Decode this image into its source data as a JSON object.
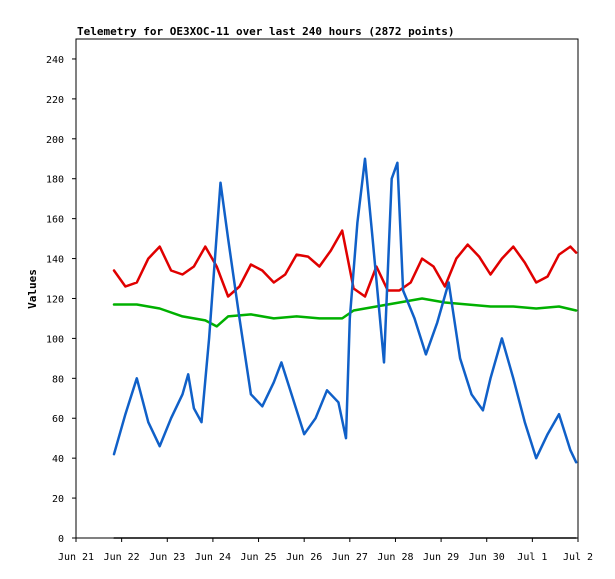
{
  "chart_data": {
    "type": "line",
    "title": "Telemetry for OE3XOC-11 over last 240 hours (2872 points)",
    "xlabel": "",
    "ylabel": "Values",
    "xlim": [
      "2024-06-21",
      "2024-07-02"
    ],
    "ylim": [
      0,
      250
    ],
    "x_ticks": [
      "Jun 21",
      "Jun 22",
      "Jun 23",
      "Jun 24",
      "Jun 25",
      "Jun 26",
      "Jun 27",
      "Jun 28",
      "Jun 29",
      "Jun 30",
      "Jul 1",
      "Jul 2"
    ],
    "y_ticks": [
      0,
      20,
      40,
      60,
      80,
      100,
      120,
      140,
      160,
      180,
      200,
      220,
      240
    ],
    "grid": false,
    "legend": "none",
    "series": [
      {
        "color": "#e00000",
        "points": [
          [
            "2024-06-21 20:00",
            134
          ],
          [
            "2024-06-22 02:00",
            126
          ],
          [
            "2024-06-22 08:00",
            128
          ],
          [
            "2024-06-22 14:00",
            140
          ],
          [
            "2024-06-22 20:00",
            146
          ],
          [
            "2024-06-23 02:00",
            134
          ],
          [
            "2024-06-23 08:00",
            132
          ],
          [
            "2024-06-23 14:00",
            136
          ],
          [
            "2024-06-23 20:00",
            146
          ],
          [
            "2024-06-24 02:00",
            136
          ],
          [
            "2024-06-24 08:00",
            121
          ],
          [
            "2024-06-24 14:00",
            126
          ],
          [
            "2024-06-24 20:00",
            137
          ],
          [
            "2024-06-25 02:00",
            134
          ],
          [
            "2024-06-25 08:00",
            128
          ],
          [
            "2024-06-25 14:00",
            132
          ],
          [
            "2024-06-25 20:00",
            142
          ],
          [
            "2024-06-26 02:00",
            141
          ],
          [
            "2024-06-26 08:00",
            136
          ],
          [
            "2024-06-26 14:00",
            144
          ],
          [
            "2024-06-26 20:00",
            154
          ],
          [
            "2024-06-27 02:00",
            125
          ],
          [
            "2024-06-27 08:00",
            121
          ],
          [
            "2024-06-27 14:00",
            136
          ],
          [
            "2024-06-27 20:00",
            124
          ],
          [
            "2024-06-28 02:00",
            124
          ],
          [
            "2024-06-28 08:00",
            128
          ],
          [
            "2024-06-28 14:00",
            140
          ],
          [
            "2024-06-28 20:00",
            136
          ],
          [
            "2024-06-29 02:00",
            126
          ],
          [
            "2024-06-29 08:00",
            140
          ],
          [
            "2024-06-29 14:00",
            147
          ],
          [
            "2024-06-29 20:00",
            141
          ],
          [
            "2024-06-30 02:00",
            132
          ],
          [
            "2024-06-30 08:00",
            140
          ],
          [
            "2024-06-30 14:00",
            146
          ],
          [
            "2024-06-30 20:00",
            138
          ],
          [
            "2024-07-01 02:00",
            128
          ],
          [
            "2024-07-01 08:00",
            131
          ],
          [
            "2024-07-01 14:00",
            142
          ],
          [
            "2024-07-01 20:00",
            146
          ],
          [
            "2024-07-01 23:00",
            143
          ]
        ]
      },
      {
        "color": "#00b000",
        "points": [
          [
            "2024-06-21 20:00",
            117
          ],
          [
            "2024-06-22 08:00",
            117
          ],
          [
            "2024-06-22 20:00",
            115
          ],
          [
            "2024-06-23 08:00",
            111
          ],
          [
            "2024-06-23 20:00",
            109
          ],
          [
            "2024-06-24 02:00",
            106
          ],
          [
            "2024-06-24 08:00",
            111
          ],
          [
            "2024-06-24 20:00",
            112
          ],
          [
            "2024-06-25 08:00",
            110
          ],
          [
            "2024-06-25 20:00",
            111
          ],
          [
            "2024-06-26 08:00",
            110
          ],
          [
            "2024-06-26 20:00",
            110
          ],
          [
            "2024-06-27 02:00",
            114
          ],
          [
            "2024-06-27 14:00",
            116
          ],
          [
            "2024-06-28 02:00",
            118
          ],
          [
            "2024-06-28 14:00",
            120
          ],
          [
            "2024-06-29 02:00",
            118
          ],
          [
            "2024-06-29 14:00",
            117
          ],
          [
            "2024-06-30 02:00",
            116
          ],
          [
            "2024-06-30 14:00",
            116
          ],
          [
            "2024-07-01 02:00",
            115
          ],
          [
            "2024-07-01 14:00",
            116
          ],
          [
            "2024-07-01 23:00",
            114
          ]
        ]
      },
      {
        "color": "#1060c8",
        "points": [
          [
            "2024-06-21 20:00",
            42
          ],
          [
            "2024-06-22 02:00",
            62
          ],
          [
            "2024-06-22 08:00",
            80
          ],
          [
            "2024-06-22 14:00",
            58
          ],
          [
            "2024-06-22 20:00",
            46
          ],
          [
            "2024-06-23 02:00",
            60
          ],
          [
            "2024-06-23 08:00",
            72
          ],
          [
            "2024-06-23 11:00",
            82
          ],
          [
            "2024-06-23 14:00",
            65
          ],
          [
            "2024-06-23 18:00",
            58
          ],
          [
            "2024-06-23 22:00",
            100
          ],
          [
            "2024-06-24 04:00",
            178
          ],
          [
            "2024-06-24 08:00",
            150
          ],
          [
            "2024-06-24 14:00",
            110
          ],
          [
            "2024-06-24 20:00",
            72
          ],
          [
            "2024-06-25 02:00",
            66
          ],
          [
            "2024-06-25 08:00",
            78
          ],
          [
            "2024-06-25 12:00",
            88
          ],
          [
            "2024-06-25 18:00",
            70
          ],
          [
            "2024-06-26 00:00",
            52
          ],
          [
            "2024-06-26 06:00",
            60
          ],
          [
            "2024-06-26 12:00",
            74
          ],
          [
            "2024-06-26 18:00",
            68
          ],
          [
            "2024-06-26 22:00",
            50
          ],
          [
            "2024-06-27 00:00",
            110
          ],
          [
            "2024-06-27 04:00",
            158
          ],
          [
            "2024-06-27 08:00",
            190
          ],
          [
            "2024-06-27 12:00",
            150
          ],
          [
            "2024-06-27 18:00",
            88
          ],
          [
            "2024-06-27 22:00",
            180
          ],
          [
            "2024-06-28 01:00",
            188
          ],
          [
            "2024-06-28 04:00",
            124
          ],
          [
            "2024-06-28 10:00",
            110
          ],
          [
            "2024-06-28 16:00",
            92
          ],
          [
            "2024-06-28 22:00",
            108
          ],
          [
            "2024-06-29 04:00",
            128
          ],
          [
            "2024-06-29 10:00",
            90
          ],
          [
            "2024-06-29 16:00",
            72
          ],
          [
            "2024-06-29 22:00",
            64
          ],
          [
            "2024-06-30 02:00",
            80
          ],
          [
            "2024-06-30 08:00",
            100
          ],
          [
            "2024-06-30 14:00",
            80
          ],
          [
            "2024-06-30 20:00",
            58
          ],
          [
            "2024-07-01 02:00",
            40
          ],
          [
            "2024-07-01 08:00",
            52
          ],
          [
            "2024-07-01 14:00",
            62
          ],
          [
            "2024-07-01 20:00",
            44
          ],
          [
            "2024-07-01 23:00",
            38
          ]
        ]
      },
      {
        "color": "#000000",
        "points": [
          [
            "2024-06-21 20:00",
            0
          ],
          [
            "2024-07-01 23:00",
            0
          ]
        ]
      }
    ]
  }
}
